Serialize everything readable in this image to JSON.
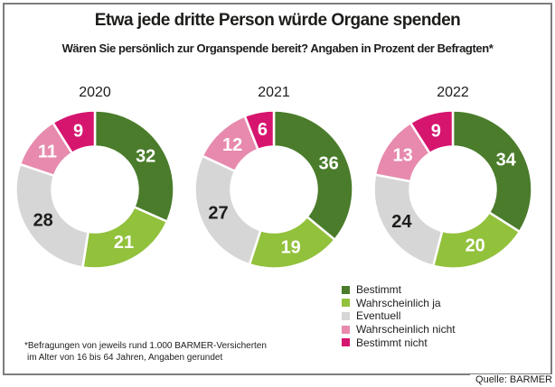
{
  "title": "Etwa jede dritte Person würde Organe spenden",
  "subtitle": "Wären Sie persönlich zur Organspende bereit? Angaben in Prozent der Befragten*",
  "chart_data": {
    "type": "pie",
    "variant": "donut",
    "title": "Etwa jede dritte Person würde Organe spenden",
    "subtitle": "Wären Sie persönlich zur Organspende bereit? Angaben in Prozent der Befragten*",
    "unit": "Prozent der Befragten",
    "legend_position": "bottom-right",
    "categories": [
      "Bestimmt",
      "Wahrscheinlich ja",
      "Eventuell",
      "Wahrscheinlich nicht",
      "Bestimmt nicht"
    ],
    "colors": [
      "#4a7c2b",
      "#92c13c",
      "#d6d6d6",
      "#e78aae",
      "#d6156f"
    ],
    "label_colors": [
      "#ffffff",
      "#ffffff",
      "#1d1d1b",
      "#ffffff",
      "#ffffff"
    ],
    "donuts": [
      {
        "year": "2020",
        "values": [
          32,
          21,
          28,
          11,
          9
        ]
      },
      {
        "year": "2021",
        "values": [
          36,
          19,
          27,
          12,
          6
        ]
      },
      {
        "year": "2022",
        "values": [
          34,
          20,
          24,
          13,
          9
        ]
      }
    ]
  },
  "footnote": {
    "line1": "*Befragungen von jeweils rund 1.000 BARMER-Versicherten",
    "line2": "im Alter von 16 bis 64 Jahren, Angaben gerundet"
  },
  "source": "Quelle: BARMER"
}
